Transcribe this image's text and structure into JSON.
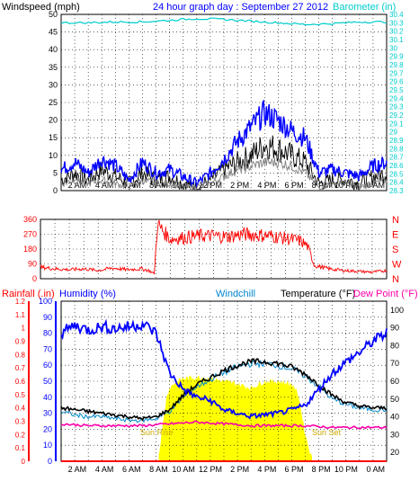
{
  "colors": {
    "wind": "#000000",
    "gust": "#0000ff",
    "avg": "#808080",
    "baro": "#00cccc",
    "title": "#0000ff",
    "dir": "#ff0000",
    "rain": "#ff0000",
    "humidity": "#0000ff",
    "windchill": "#0088cc",
    "temperature": "#000000",
    "dewpoint": "#ff00aa",
    "solar": "#ffff00",
    "sun_label": "#ccaa00"
  },
  "chart_data": [
    {
      "type": "line",
      "title": "24 hour graph day : September 27 2012",
      "ylabel_left": "Windspeed (mph)",
      "ylabel_right": "Barometer (in)",
      "ylim_left": [
        0,
        50
      ],
      "yticks_left": [
        "0",
        "5",
        "10",
        "15",
        "20",
        "25",
        "30",
        "35",
        "40",
        "45",
        "50"
      ],
      "ylim_right": [
        28.3,
        30.4
      ],
      "yticks_right": [
        "28.3",
        "28.4",
        "28.5",
        "28.6",
        "28.7",
        "28.8",
        "28.9",
        "29",
        "29.1",
        "29.2",
        "29.3",
        "29.4",
        "29.5",
        "29.6",
        "29.7",
        "29.8",
        "29.9",
        "30",
        "30.1",
        "30.2",
        "30.3",
        "30.4"
      ],
      "xticks": [
        "2 AM",
        "4 AM",
        "6 AM",
        "8 AM",
        "10 AM",
        "12 PM",
        "2 PM",
        "4 PM",
        "6 PM",
        "8 PM",
        "10 PM",
        "0 AM"
      ],
      "grid": true,
      "series": [
        {
          "key": "gust",
          "x": [
            0,
            1,
            2,
            3,
            4,
            5,
            6,
            7,
            8,
            9,
            10,
            11,
            12,
            13,
            14,
            15,
            16,
            17,
            18,
            19,
            20,
            21,
            22,
            23,
            24
          ],
          "values": [
            6,
            8,
            5,
            9,
            7,
            3,
            8,
            5,
            6,
            4,
            2,
            5,
            9,
            14,
            18,
            22,
            20,
            17,
            15,
            5,
            6,
            5,
            4,
            7,
            8
          ]
        },
        {
          "key": "wind",
          "x": [
            0,
            1,
            2,
            3,
            4,
            5,
            6,
            7,
            8,
            9,
            10,
            11,
            12,
            13,
            14,
            15,
            16,
            17,
            18,
            19,
            20,
            21,
            22,
            23,
            24
          ],
          "values": [
            3,
            5,
            3,
            6,
            4,
            2,
            5,
            3,
            4,
            2,
            1,
            3,
            6,
            8,
            10,
            13,
            12,
            10,
            8,
            2,
            3,
            3,
            2,
            4,
            5
          ]
        },
        {
          "key": "avg",
          "x": [
            0,
            1,
            2,
            3,
            4,
            5,
            6,
            7,
            8,
            9,
            10,
            11,
            12,
            13,
            14,
            15,
            16,
            17,
            18,
            19,
            20,
            21,
            22,
            23,
            24
          ],
          "values": [
            2,
            3,
            2,
            3,
            2,
            1,
            3,
            2,
            2,
            1,
            1,
            2,
            4,
            6,
            7,
            8,
            8,
            7,
            5,
            1,
            2,
            2,
            1,
            2,
            3
          ]
        },
        {
          "key": "baro",
          "x": [
            0,
            2,
            4,
            6,
            8,
            10,
            12,
            14,
            16,
            18,
            20,
            22,
            24
          ],
          "values": [
            30.3,
            30.3,
            30.31,
            30.31,
            30.33,
            30.35,
            30.34,
            30.32,
            30.3,
            30.28,
            30.29,
            30.31,
            30.31
          ]
        }
      ]
    },
    {
      "type": "scatter",
      "ylim": [
        0,
        360
      ],
      "yticks": [
        "0",
        "90",
        "180",
        "270",
        "360"
      ],
      "compass": [
        "N",
        "W",
        "S",
        "E",
        "N"
      ],
      "series": [
        {
          "key": "dir",
          "x": [
            0,
            1,
            2,
            3,
            4,
            5,
            6,
            7,
            7.5,
            7.9,
            8.1,
            8.5,
            9,
            10,
            11,
            12,
            13,
            14,
            15,
            16,
            17,
            18,
            18.5,
            19,
            20,
            21,
            22,
            23,
            24
          ],
          "values": [
            70,
            60,
            55,
            60,
            50,
            65,
            55,
            60,
            50,
            30,
            330,
            290,
            240,
            250,
            260,
            260,
            255,
            270,
            265,
            260,
            245,
            230,
            200,
            80,
            60,
            50,
            45,
            40,
            50
          ]
        }
      ]
    },
    {
      "type": "line",
      "ylabels": [
        "Rainfall (.in)",
        "Humidity (%)",
        "Windchill",
        "Temperature (°F)",
        "Dew Point (°F)"
      ],
      "ylim_rain": [
        0,
        1.2
      ],
      "yticks_rain": [
        "0",
        "0.1",
        "0.2",
        "0.3",
        "0.4",
        "0.5",
        "0.6",
        "0.7",
        "0.8",
        "0.9",
        "1",
        "1.1",
        "1.2"
      ],
      "ylim_humidity": [
        0,
        100
      ],
      "yticks_humidity": [
        "0",
        "10",
        "20",
        "30",
        "40",
        "50",
        "60",
        "70",
        "80",
        "90",
        "100"
      ],
      "ylim_temp": [
        15,
        105
      ],
      "yticks_temp": [
        "20",
        "30",
        "40",
        "50",
        "60",
        "70",
        "80",
        "90",
        "100"
      ],
      "annotations": [
        "Sun Rise",
        "Sun Set"
      ],
      "series": [
        {
          "key": "humidity",
          "x": [
            0,
            1,
            2,
            3,
            4,
            5,
            6,
            7,
            8,
            9,
            10,
            11,
            12,
            13,
            14,
            15,
            16,
            17,
            18,
            19,
            20,
            21,
            22,
            23,
            24
          ],
          "values": [
            80,
            85,
            82,
            84,
            83,
            84,
            86,
            80,
            55,
            45,
            40,
            38,
            32,
            30,
            28,
            29,
            30,
            32,
            35,
            45,
            55,
            62,
            68,
            75,
            80
          ]
        },
        {
          "key": "temperature",
          "x": [
            0,
            1,
            2,
            3,
            4,
            5,
            6,
            7,
            8,
            9,
            10,
            11,
            12,
            13,
            14,
            15,
            16,
            17,
            18,
            19,
            20,
            21,
            22,
            23,
            24
          ],
          "values": [
            45,
            44,
            43,
            42,
            41,
            40,
            39,
            40,
            44,
            52,
            58,
            62,
            66,
            69,
            71,
            71,
            70,
            68,
            64,
            58,
            52,
            48,
            46,
            45,
            45
          ]
        },
        {
          "key": "windchill",
          "x": [
            0,
            1,
            2,
            3,
            4,
            5,
            6,
            7,
            8,
            9,
            10,
            11,
            12,
            13,
            14,
            15,
            16,
            17,
            18,
            19,
            20,
            21,
            22,
            23,
            24
          ],
          "values": [
            43,
            41,
            40,
            40,
            39,
            38,
            38,
            39,
            43,
            51,
            57,
            61,
            65,
            68,
            70,
            70,
            69,
            67,
            63,
            57,
            50,
            47,
            45,
            44,
            44
          ]
        },
        {
          "key": "dewpoint",
          "x": [
            0,
            2,
            4,
            6,
            8,
            10,
            12,
            14,
            16,
            18,
            20,
            22,
            24
          ],
          "values": [
            36,
            35,
            35,
            35,
            36,
            37,
            36,
            35,
            35,
            35,
            34,
            34,
            34
          ]
        },
        {
          "key": "rain",
          "x": [
            0,
            24
          ],
          "values": [
            0,
            0
          ]
        },
        {
          "key": "solar",
          "x": [
            7.2,
            7.8,
            8,
            8.5,
            9,
            10,
            11,
            12,
            13,
            14,
            15,
            16,
            17,
            17.5,
            18,
            18.5
          ],
          "values": [
            0.05,
            0.5,
            0.55,
            0.6,
            0.62,
            0.63,
            0.62,
            0.6,
            0.58,
            0.55,
            0.6,
            0.6,
            0.58,
            0.5,
            0.2,
            0.02
          ]
        }
      ]
    }
  ]
}
